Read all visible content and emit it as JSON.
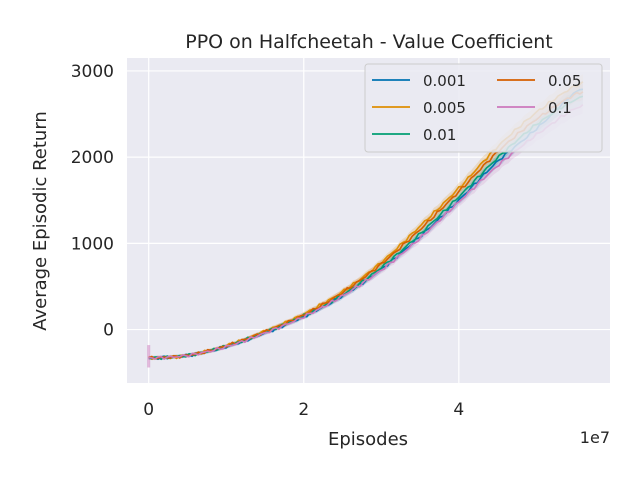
{
  "chart_data": {
    "type": "line",
    "title": "PPO on Halfcheetah - Value Coefficient",
    "xlabel": "Episodes",
    "ylabel": "Average Episodic Return",
    "x_scale_label": "1e7",
    "xlim": [
      -0.28,
      5.95
    ],
    "ylim": [
      -620,
      3150
    ],
    "xticks": [
      0,
      2,
      4
    ],
    "xtick_labels": [
      "0",
      "2",
      "4"
    ],
    "yticks": [
      0,
      1000,
      2000,
      3000
    ],
    "ytick_labels": [
      "0",
      "1000",
      "2000",
      "3000"
    ],
    "grid": true,
    "legend_position": "top-right",
    "x": [
      0,
      0.5,
      1,
      1.5,
      2,
      2.5,
      3,
      3.5,
      4,
      4.5,
      5,
      5.6
    ],
    "series": [
      {
        "name": "0.001",
        "color": "#0173b2",
        "values": [
          -330,
          -300,
          -200,
          -40,
          150,
          390,
          700,
          1080,
          1500,
          1950,
          2330,
          2800
        ]
      },
      {
        "name": "0.005",
        "color": "#de8f05",
        "values": [
          -330,
          -300,
          -190,
          -20,
          180,
          440,
          780,
          1200,
          1640,
          2120,
          2520,
          2860
        ]
      },
      {
        "name": "0.01",
        "color": "#029e73",
        "values": [
          -330,
          -300,
          -195,
          -30,
          160,
          400,
          720,
          1110,
          1540,
          1990,
          2380,
          2700
        ]
      },
      {
        "name": "0.05",
        "color": "#d55e00",
        "values": [
          -330,
          -300,
          -190,
          -25,
          170,
          430,
          760,
          1160,
          1600,
          2060,
          2440,
          2760
        ]
      },
      {
        "name": "0.1",
        "color": "#cc78bc",
        "values": [
          -330,
          -300,
          -200,
          -40,
          150,
          390,
          690,
          1060,
          1480,
          1900,
          2260,
          2600
        ]
      }
    ]
  }
}
